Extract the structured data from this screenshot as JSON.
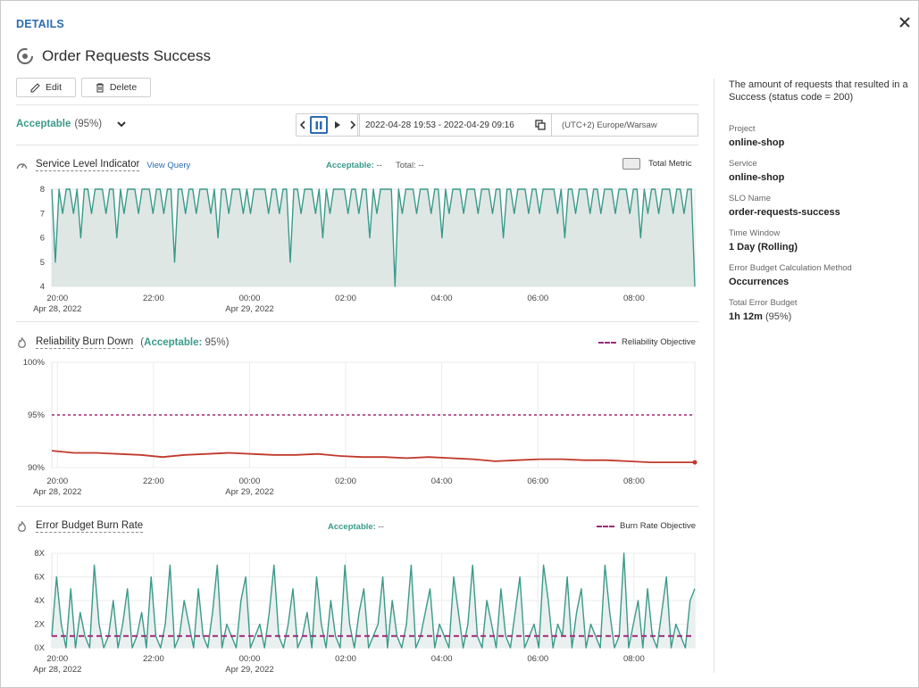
{
  "header": {
    "section_label": "DETAILS",
    "title": "Order Requests Success"
  },
  "toolbar": {
    "edit_label": "Edit",
    "delete_label": "Delete"
  },
  "status": {
    "label": "Acceptable",
    "percent": "(95%)"
  },
  "timeline": {
    "range": "2022-04-28 19:53 - 2022-04-29 09:16",
    "timezone": "(UTC+2) Europe/Warsaw"
  },
  "x_ticks": [
    {
      "time": "20:00",
      "date": "Apr 28, 2022"
    },
    {
      "time": "22:00",
      "date": ""
    },
    {
      "time": "00:00",
      "date": "Apr 29, 2022"
    },
    {
      "time": "02:00",
      "date": ""
    },
    {
      "time": "04:00",
      "date": ""
    },
    {
      "time": "06:00",
      "date": ""
    },
    {
      "time": "08:00",
      "date": ""
    }
  ],
  "sli": {
    "title": "Service Level Indicator",
    "view_query": "View Query",
    "acceptable_label": "Acceptable:",
    "acceptable_value": "--",
    "total_label": "Total:",
    "total_value": "--",
    "legend": "Total Metric"
  },
  "burndown": {
    "title": "Reliability Burn Down",
    "acceptable_label": "Acceptable:",
    "acceptable_value": "95%",
    "legend": "Reliability Objective"
  },
  "burnrate": {
    "title": "Error Budget Burn Rate",
    "acceptable_label": "Acceptable:",
    "acceptable_value": "--",
    "legend": "Burn Rate Objective"
  },
  "sidebar": {
    "description": "The amount of requests that resulted in a Success (status code = 200)",
    "items": [
      {
        "label": "Project",
        "value": "online-shop",
        "extra": ""
      },
      {
        "label": "Service",
        "value": "online-shop",
        "extra": ""
      },
      {
        "label": "SLO Name",
        "value": "order-requests-success",
        "extra": ""
      },
      {
        "label": "Time Window",
        "value": "1 Day (Rolling)",
        "extra": ""
      },
      {
        "label": "Error Budget Calculation Method",
        "value": "Occurrences",
        "extra": ""
      },
      {
        "label": "Total Error Budget",
        "value": "1h 12m",
        "extra": "(95%)"
      }
    ]
  },
  "colors": {
    "accent": "#2b6cb0",
    "teal": "#3a9a8a",
    "red": "#c0392b",
    "objective": "#a0287a"
  },
  "chart_data": [
    {
      "type": "area",
      "name": "Service Level Indicator",
      "x_range": [
        "2022-04-28 19:53",
        "2022-04-29 09:16"
      ],
      "ylim": [
        4,
        8
      ],
      "yticks": [
        "4",
        "5",
        "6",
        "7",
        "8"
      ],
      "x_tick_labels": [
        "20:00",
        "22:00",
        "00:00",
        "02:00",
        "04:00",
        "06:00",
        "08:00"
      ],
      "series": [
        {
          "name": "Total Metric",
          "values": [
            8,
            5,
            8,
            7,
            8,
            8,
            7,
            8,
            6,
            8,
            8,
            7,
            8,
            8,
            8,
            7,
            8,
            8,
            6,
            8,
            7,
            8,
            8,
            8,
            7,
            8,
            8,
            8,
            7,
            8,
            8,
            7,
            8,
            8,
            5,
            8,
            8,
            7,
            8,
            8,
            7,
            8,
            8,
            8,
            7,
            8,
            6,
            8,
            8,
            7,
            8,
            8,
            8,
            7,
            8,
            7,
            8,
            8,
            8,
            8,
            7,
            8,
            8,
            7,
            8,
            8,
            5,
            8,
            8,
            7,
            8,
            8,
            8,
            7,
            8,
            6,
            8,
            7,
            8,
            8,
            8,
            8,
            7,
            8,
            8,
            7,
            8,
            8,
            6,
            8,
            7,
            8,
            8,
            8,
            8,
            4,
            8,
            7,
            8,
            8,
            8,
            7,
            8,
            8,
            8,
            7,
            8,
            8,
            6,
            8,
            7,
            8,
            8,
            8,
            7,
            8,
            8,
            8,
            7,
            8,
            8,
            8,
            7,
            8,
            8,
            6,
            8,
            8,
            7,
            8,
            8,
            8,
            7,
            8,
            8,
            7,
            8,
            8,
            8,
            8,
            7,
            8,
            6,
            8,
            8,
            7,
            8,
            8,
            8,
            7,
            8,
            8,
            7,
            8,
            8,
            8,
            7,
            8,
            8,
            8,
            7,
            8,
            8,
            6,
            8,
            7,
            8,
            8,
            7,
            8,
            8,
            8,
            7,
            8,
            8,
            7,
            8,
            8,
            4
          ]
        }
      ],
      "grid": false
    },
    {
      "type": "line",
      "name": "Reliability Burn Down",
      "x_range": [
        "2022-04-28 19:53",
        "2022-04-29 09:16"
      ],
      "ylim": [
        90,
        100
      ],
      "yticks": [
        "90%",
        "95%",
        "100%"
      ],
      "x_tick_labels": [
        "20:00",
        "22:00",
        "00:00",
        "02:00",
        "04:00",
        "06:00",
        "08:00"
      ],
      "objective": 95,
      "series": [
        {
          "name": "",
          "values": [
            91.6,
            91.4,
            91.4,
            91.3,
            91.2,
            91.0,
            91.2,
            91.3,
            91.4,
            91.3,
            91.2,
            91.2,
            91.3,
            91.1,
            91.0,
            91.0,
            90.9,
            91.0,
            90.9,
            90.8,
            90.6,
            90.7,
            90.8,
            90.8,
            90.7,
            90.7,
            90.6,
            90.5,
            90.5,
            90.5
          ]
        }
      ],
      "grid": true
    },
    {
      "type": "line",
      "name": "Error Budget Burn Rate",
      "x_range": [
        "2022-04-28 19:53",
        "2022-04-29 09:16"
      ],
      "ylim": [
        0,
        8
      ],
      "yticks": [
        "0X",
        "2X",
        "4X",
        "6X",
        "8X"
      ],
      "x_tick_labels": [
        "20:00",
        "22:00",
        "00:00",
        "02:00",
        "04:00",
        "06:00",
        "08:00"
      ],
      "objective": 1,
      "series": [
        {
          "name": "",
          "values": [
            1,
            6,
            2,
            0,
            5,
            0,
            3,
            1,
            0,
            7,
            2,
            0,
            1,
            4,
            0,
            2,
            5,
            0,
            1,
            3,
            0,
            6,
            1,
            0,
            2,
            7,
            0,
            1,
            4,
            2,
            0,
            5,
            1,
            0,
            3,
            7,
            0,
            2,
            1,
            0,
            4,
            6,
            0,
            1,
            2,
            0,
            3,
            7,
            1,
            0,
            2,
            5,
            0,
            1,
            3,
            0,
            6,
            2,
            0,
            4,
            1,
            0,
            7,
            2,
            0,
            3,
            5,
            0,
            1,
            2,
            6,
            0,
            4,
            1,
            0,
            2,
            7,
            0,
            1,
            3,
            5,
            0,
            2,
            1,
            0,
            6,
            3,
            0,
            2,
            7,
            1,
            0,
            4,
            2,
            0,
            5,
            1,
            0,
            3,
            6,
            0,
            1,
            2,
            0,
            7,
            4,
            0,
            2,
            1,
            6,
            0,
            3,
            5,
            0,
            2,
            1,
            0,
            7,
            3,
            0,
            1,
            8,
            0,
            2,
            4,
            0,
            5,
            1,
            0,
            3,
            6,
            0,
            2,
            1,
            0,
            4,
            5
          ]
        }
      ],
      "grid": true
    }
  ]
}
